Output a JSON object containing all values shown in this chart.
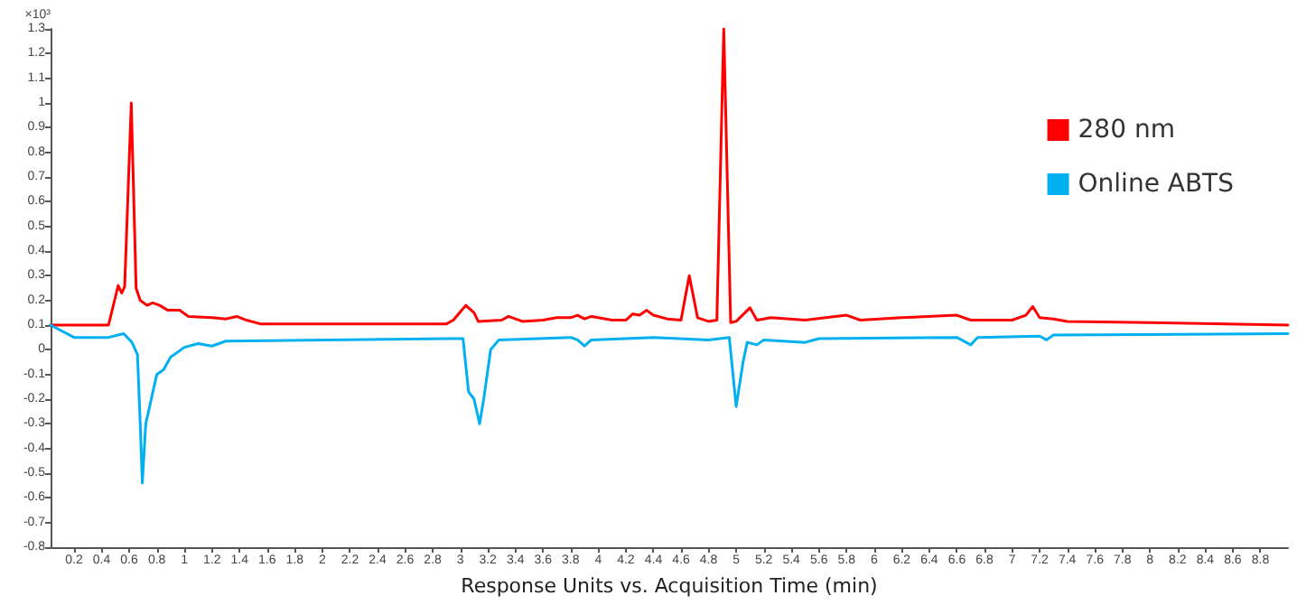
{
  "chart_data": {
    "type": "line",
    "xlabel": "Response Units vs. Acquisition Time (min)",
    "ylabel": "×10³",
    "xlim": [
      0.03,
      9.0
    ],
    "ylim": [
      -0.8,
      1.3
    ],
    "xticks": [
      0.2,
      0.4,
      0.6,
      0.8,
      1,
      1.2,
      1.4,
      1.6,
      1.8,
      2,
      2.2,
      2.4,
      2.6,
      2.8,
      3,
      3.2,
      3.4,
      3.6,
      3.8,
      4,
      4.2,
      4.4,
      4.6,
      4.8,
      5,
      5.2,
      5.4,
      5.6,
      5.8,
      6,
      6.2,
      6.4,
      6.6,
      6.8,
      7,
      7.2,
      7.4,
      7.6,
      7.8,
      8,
      8.2,
      8.4,
      8.6,
      8.8
    ],
    "yticks": [
      -0.8,
      -0.7,
      -0.6,
      -0.5,
      -0.4,
      -0.3,
      -0.2,
      -0.1,
      0,
      0.1,
      0.2,
      0.3,
      0.4,
      0.5,
      0.6,
      0.7,
      0.8,
      0.9,
      1,
      1.1,
      1.2,
      1.3
    ],
    "grid": false,
    "legend": "right",
    "marker": "none",
    "line_style": "solid",
    "series": [
      {
        "name": "280 nm",
        "color": "#ff0000",
        "x": [
          0.03,
          0.45,
          0.52,
          0.545,
          0.567,
          0.615,
          0.65,
          0.68,
          0.73,
          0.77,
          0.82,
          0.88,
          0.965,
          1.03,
          1.2,
          1.3,
          1.38,
          1.45,
          1.55,
          2.9,
          2.95,
          3.04,
          3.1,
          3.13,
          3.3,
          3.35,
          3.45,
          3.6,
          3.7,
          3.8,
          3.85,
          3.9,
          3.95,
          4.0,
          4.1,
          4.2,
          4.25,
          4.3,
          4.35,
          4.4,
          4.5,
          4.6,
          4.66,
          4.72,
          4.8,
          4.86,
          4.91,
          4.96,
          5.0,
          5.1,
          5.15,
          5.2,
          5.25,
          5.5,
          5.8,
          5.9,
          6.2,
          6.6,
          6.7,
          7.0,
          7.1,
          7.15,
          7.2,
          7.3,
          7.4,
          8.0,
          9.0
        ],
        "values": [
          0.1,
          0.1,
          0.26,
          0.23,
          0.255,
          1.0,
          0.25,
          0.2,
          0.18,
          0.19,
          0.18,
          0.16,
          0.16,
          0.135,
          0.13,
          0.125,
          0.135,
          0.12,
          0.105,
          0.105,
          0.12,
          0.18,
          0.15,
          0.115,
          0.12,
          0.135,
          0.115,
          0.12,
          0.13,
          0.13,
          0.14,
          0.125,
          0.135,
          0.13,
          0.12,
          0.12,
          0.145,
          0.14,
          0.16,
          0.14,
          0.125,
          0.12,
          0.3,
          0.13,
          0.115,
          0.12,
          1.3,
          0.11,
          0.115,
          0.17,
          0.12,
          0.125,
          0.13,
          0.12,
          0.14,
          0.12,
          0.13,
          0.14,
          0.12,
          0.12,
          0.14,
          0.175,
          0.13,
          0.125,
          0.115,
          0.11,
          0.1
        ]
      },
      {
        "name": "Online ABTS",
        "color": "#00b0f0",
        "x": [
          0.03,
          0.2,
          0.45,
          0.56,
          0.62,
          0.66,
          0.68,
          0.695,
          0.72,
          0.76,
          0.8,
          0.85,
          0.9,
          1.0,
          1.1,
          1.2,
          1.3,
          2.9,
          3.02,
          3.06,
          3.1,
          3.14,
          3.17,
          3.22,
          3.28,
          3.8,
          3.85,
          3.9,
          3.95,
          4.4,
          4.8,
          4.95,
          5.0,
          5.05,
          5.08,
          5.15,
          5.2,
          5.5,
          5.6,
          6.6,
          6.7,
          6.75,
          7.2,
          7.25,
          7.3,
          9.0
        ],
        "values": [
          0.1,
          0.05,
          0.05,
          0.065,
          0.03,
          -0.02,
          -0.3,
          -0.54,
          -0.3,
          -0.2,
          -0.1,
          -0.08,
          -0.03,
          0.01,
          0.025,
          0.015,
          0.035,
          0.045,
          0.045,
          -0.17,
          -0.2,
          -0.3,
          -0.2,
          0.0,
          0.04,
          0.05,
          0.04,
          0.015,
          0.04,
          0.05,
          0.04,
          0.05,
          -0.23,
          -0.05,
          0.03,
          0.02,
          0.04,
          0.03,
          0.045,
          0.05,
          0.02,
          0.05,
          0.055,
          0.04,
          0.06,
          0.065
        ]
      }
    ]
  }
}
